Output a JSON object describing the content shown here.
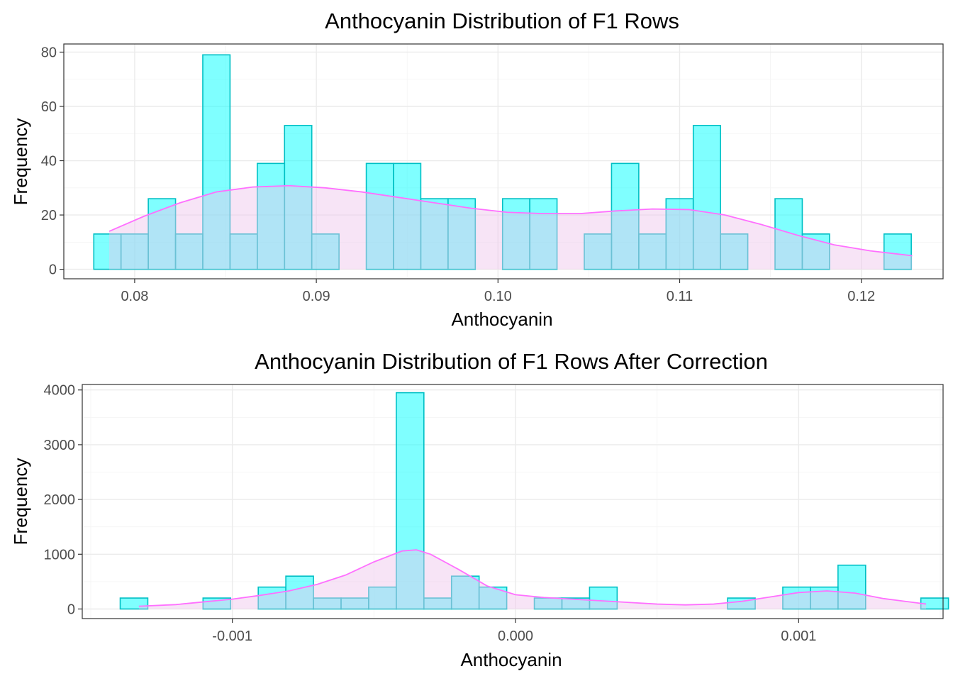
{
  "colors": {
    "bar_fill": "#00ffff",
    "bar_stroke": "#00bfc4",
    "density_fill": "#eec3ea",
    "density_line": "#ff6fff"
  },
  "chart_data": [
    {
      "type": "bar",
      "title": "Anthocyanin Distribution of F1 Rows",
      "xlabel": "Anthocyanin",
      "ylabel": "Frequency",
      "xlim": [
        0.0761,
        0.1245
      ],
      "ylim": [
        -3.5,
        83
      ],
      "x_ticks": [
        0.08,
        0.09,
        0.1,
        0.11,
        0.12
      ],
      "x_tick_labels": [
        "0.08",
        "0.09",
        "0.10",
        "0.11",
        "0.12"
      ],
      "y_ticks": [
        0,
        20,
        40,
        60,
        80
      ],
      "y_tick_labels": [
        "0",
        "20",
        "40",
        "60",
        "80"
      ],
      "grid": true,
      "bin_start": 0.07775,
      "bin_width": 0.0015,
      "values": [
        13,
        13,
        26,
        13,
        79,
        13,
        39,
        53,
        13,
        0,
        39,
        39,
        26,
        26,
        0,
        26,
        26,
        0,
        13,
        39,
        13,
        26,
        53,
        13,
        0,
        26,
        13,
        0,
        0,
        13
      ],
      "density": {
        "x": [
          0.0786,
          0.0805,
          0.0825,
          0.0845,
          0.0865,
          0.0885,
          0.0905,
          0.0925,
          0.0945,
          0.0965,
          0.0985,
          0.1005,
          0.1025,
          0.1045,
          0.1065,
          0.1085,
          0.1105,
          0.1125,
          0.1145,
          0.1165,
          0.1185,
          0.1205,
          0.1228
        ],
        "y": [
          14,
          19.5,
          24.5,
          28.5,
          30.3,
          30.8,
          30,
          28.5,
          26.5,
          24.5,
          22.5,
          21,
          20.5,
          20.5,
          21.5,
          22.2,
          22,
          20,
          16.5,
          12.5,
          9,
          6.8,
          5
        ]
      }
    },
    {
      "type": "bar",
      "title": "Anthocyanin Distribution of F1 Rows After Correction",
      "xlabel": "Anthocyanin",
      "ylabel": "Frequency",
      "xlim": [
        -0.00153,
        0.00151
      ],
      "ylim": [
        -175,
        4100
      ],
      "x_ticks": [
        -0.001,
        0.0,
        0.001
      ],
      "x_tick_labels": [
        "-0.001",
        "0.000",
        "0.001"
      ],
      "y_ticks": [
        0,
        1000,
        2000,
        3000,
        4000
      ],
      "y_tick_labels": [
        "0",
        "1000",
        "2000",
        "3000",
        "4000"
      ],
      "grid": true,
      "bin_start": -0.001396,
      "bin_width": 9.75e-05,
      "values": [
        200,
        0,
        0,
        200,
        0,
        400,
        600,
        200,
        200,
        400,
        3950,
        200,
        600,
        400,
        0,
        200,
        200,
        400,
        0,
        0,
        0,
        0,
        200,
        0,
        400,
        400,
        800,
        0,
        0,
        200
      ],
      "density": {
        "x": [
          -0.00133,
          -0.0012,
          -0.0011,
          -0.001,
          -0.0009,
          -0.0008,
          -0.0007,
          -0.0006,
          -0.0005,
          -0.0004,
          -0.00035,
          -0.0003,
          -0.0002,
          -0.0001,
          0.0,
          0.0001,
          0.0002,
          0.0003,
          0.0004,
          0.0005,
          0.0006,
          0.0007,
          0.0008,
          0.0009,
          0.001,
          0.0011,
          0.0012,
          0.0013,
          0.00145
        ],
        "y": [
          50,
          80,
          130,
          180,
          250,
          330,
          450,
          620,
          860,
          1060,
          1080,
          1000,
          720,
          420,
          260,
          210,
          180,
          150,
          120,
          90,
          75,
          90,
          140,
          220,
          300,
          330,
          290,
          190,
          90
        ]
      }
    }
  ]
}
